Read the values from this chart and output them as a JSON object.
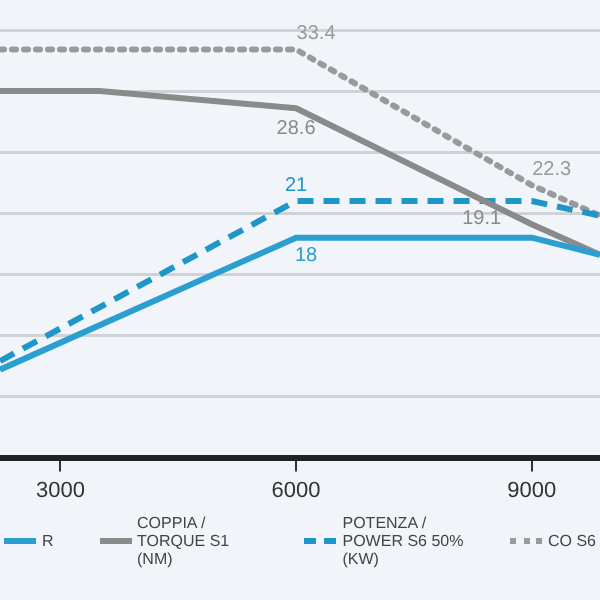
{
  "chart_data": {
    "type": "line",
    "x": [
      2230,
      3500,
      6000,
      9000,
      9870
    ],
    "xlim": [
      2230,
      9870
    ],
    "xticks": [
      3000,
      6000,
      9000
    ],
    "ylim": [
      0,
      35
    ],
    "yticks": [
      {
        "value": 0,
        "label": null
      },
      {
        "value": 5,
        "label": null
      },
      {
        "value": 10,
        "label": null
      },
      {
        "value": 15,
        "label": null
      },
      {
        "value": 20,
        "label": null
      },
      {
        "value": 25,
        "label": null
      },
      {
        "value": 30,
        "label": null
      },
      {
        "value": 35,
        "label": null
      }
    ],
    "tick_labels": "x",
    "grid": "y",
    "legend": "bottom",
    "marker": "none",
    "series": [
      {
        "name": "R",
        "color": "#2a9fd0",
        "line_style": "solid",
        "x": [
          2230,
          6000,
          9000,
          9870
        ],
        "values": [
          7.2,
          18,
          18,
          16.6
        ],
        "value_labels": [
          null,
          "18",
          null,
          null
        ]
      },
      {
        "name": "COPPIA / TORQUE S1 (NM)",
        "color": "#8a8a8a",
        "line_style": "solid",
        "values": [
          30,
          30,
          28.6,
          19.1,
          16.6
        ],
        "value_labels": [
          null,
          null,
          "28.6",
          "19.1",
          null
        ]
      },
      {
        "name": "POTENZA / POWER S6 50% (KW)",
        "color": "#1f96c8",
        "line_style": "dashed",
        "x": [
          2230,
          6000,
          9000,
          9870
        ],
        "values": [
          7.9,
          21,
          21,
          19.8
        ],
        "value_labels": [
          null,
          "21",
          null,
          null
        ]
      },
      {
        "name": "CO S6",
        "color": "#9a9a9a",
        "line_style": "dotted",
        "x": [
          2230,
          6000,
          9000,
          9870
        ],
        "values": [
          33.4,
          33.4,
          22.3,
          19.8
        ],
        "value_labels": [
          null,
          "33.4",
          "22.3",
          null
        ]
      }
    ]
  }
}
